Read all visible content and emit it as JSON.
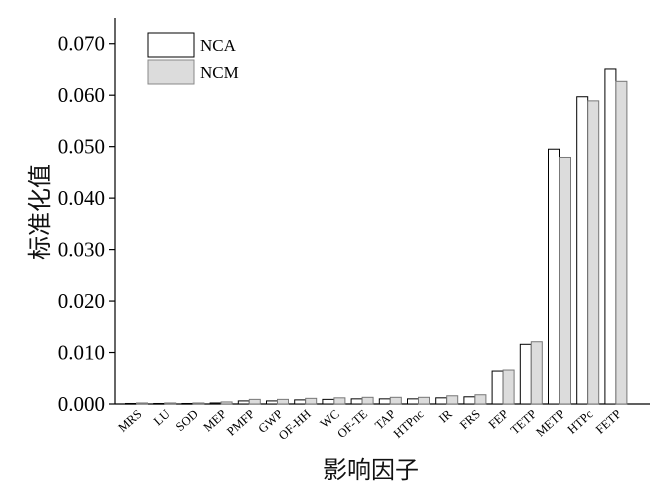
{
  "chart_data": {
    "type": "bar",
    "xlabel": "影响因子",
    "ylabel": "标准化值",
    "ylim": [
      0,
      0.075
    ],
    "y_ticks": [
      "0.000",
      "0.010",
      "0.020",
      "0.030",
      "0.040",
      "0.050",
      "0.060",
      "0.070"
    ],
    "grid": false,
    "legend_position": "top-left",
    "categories": [
      "MRS",
      "LU",
      "SOD",
      "MEP",
      "PMFP",
      "GWP",
      "OF-HH",
      "WC",
      "OF-TE",
      "TAP",
      "HTPnc",
      "IR",
      "FRS",
      "FEP",
      "TETP",
      "METP",
      "HTPc",
      "FETP"
    ],
    "series": [
      {
        "name": "NCA",
        "color": "#ffffff",
        "values": [
          0.0001,
          0.0001,
          0.0001,
          0.0002,
          0.0006,
          0.0006,
          0.0008,
          0.0009,
          0.001,
          0.001,
          0.001,
          0.0012,
          0.0014,
          0.0064,
          0.0116,
          0.0495,
          0.0597,
          0.0651
        ]
      },
      {
        "name": "NCM",
        "color": "#dcdcdc",
        "values": [
          0.0002,
          0.0002,
          0.0002,
          0.0004,
          0.0009,
          0.0009,
          0.0011,
          0.0012,
          0.0013,
          0.0013,
          0.0013,
          0.0016,
          0.0018,
          0.0066,
          0.0121,
          0.0479,
          0.0589,
          0.0627
        ]
      }
    ]
  }
}
